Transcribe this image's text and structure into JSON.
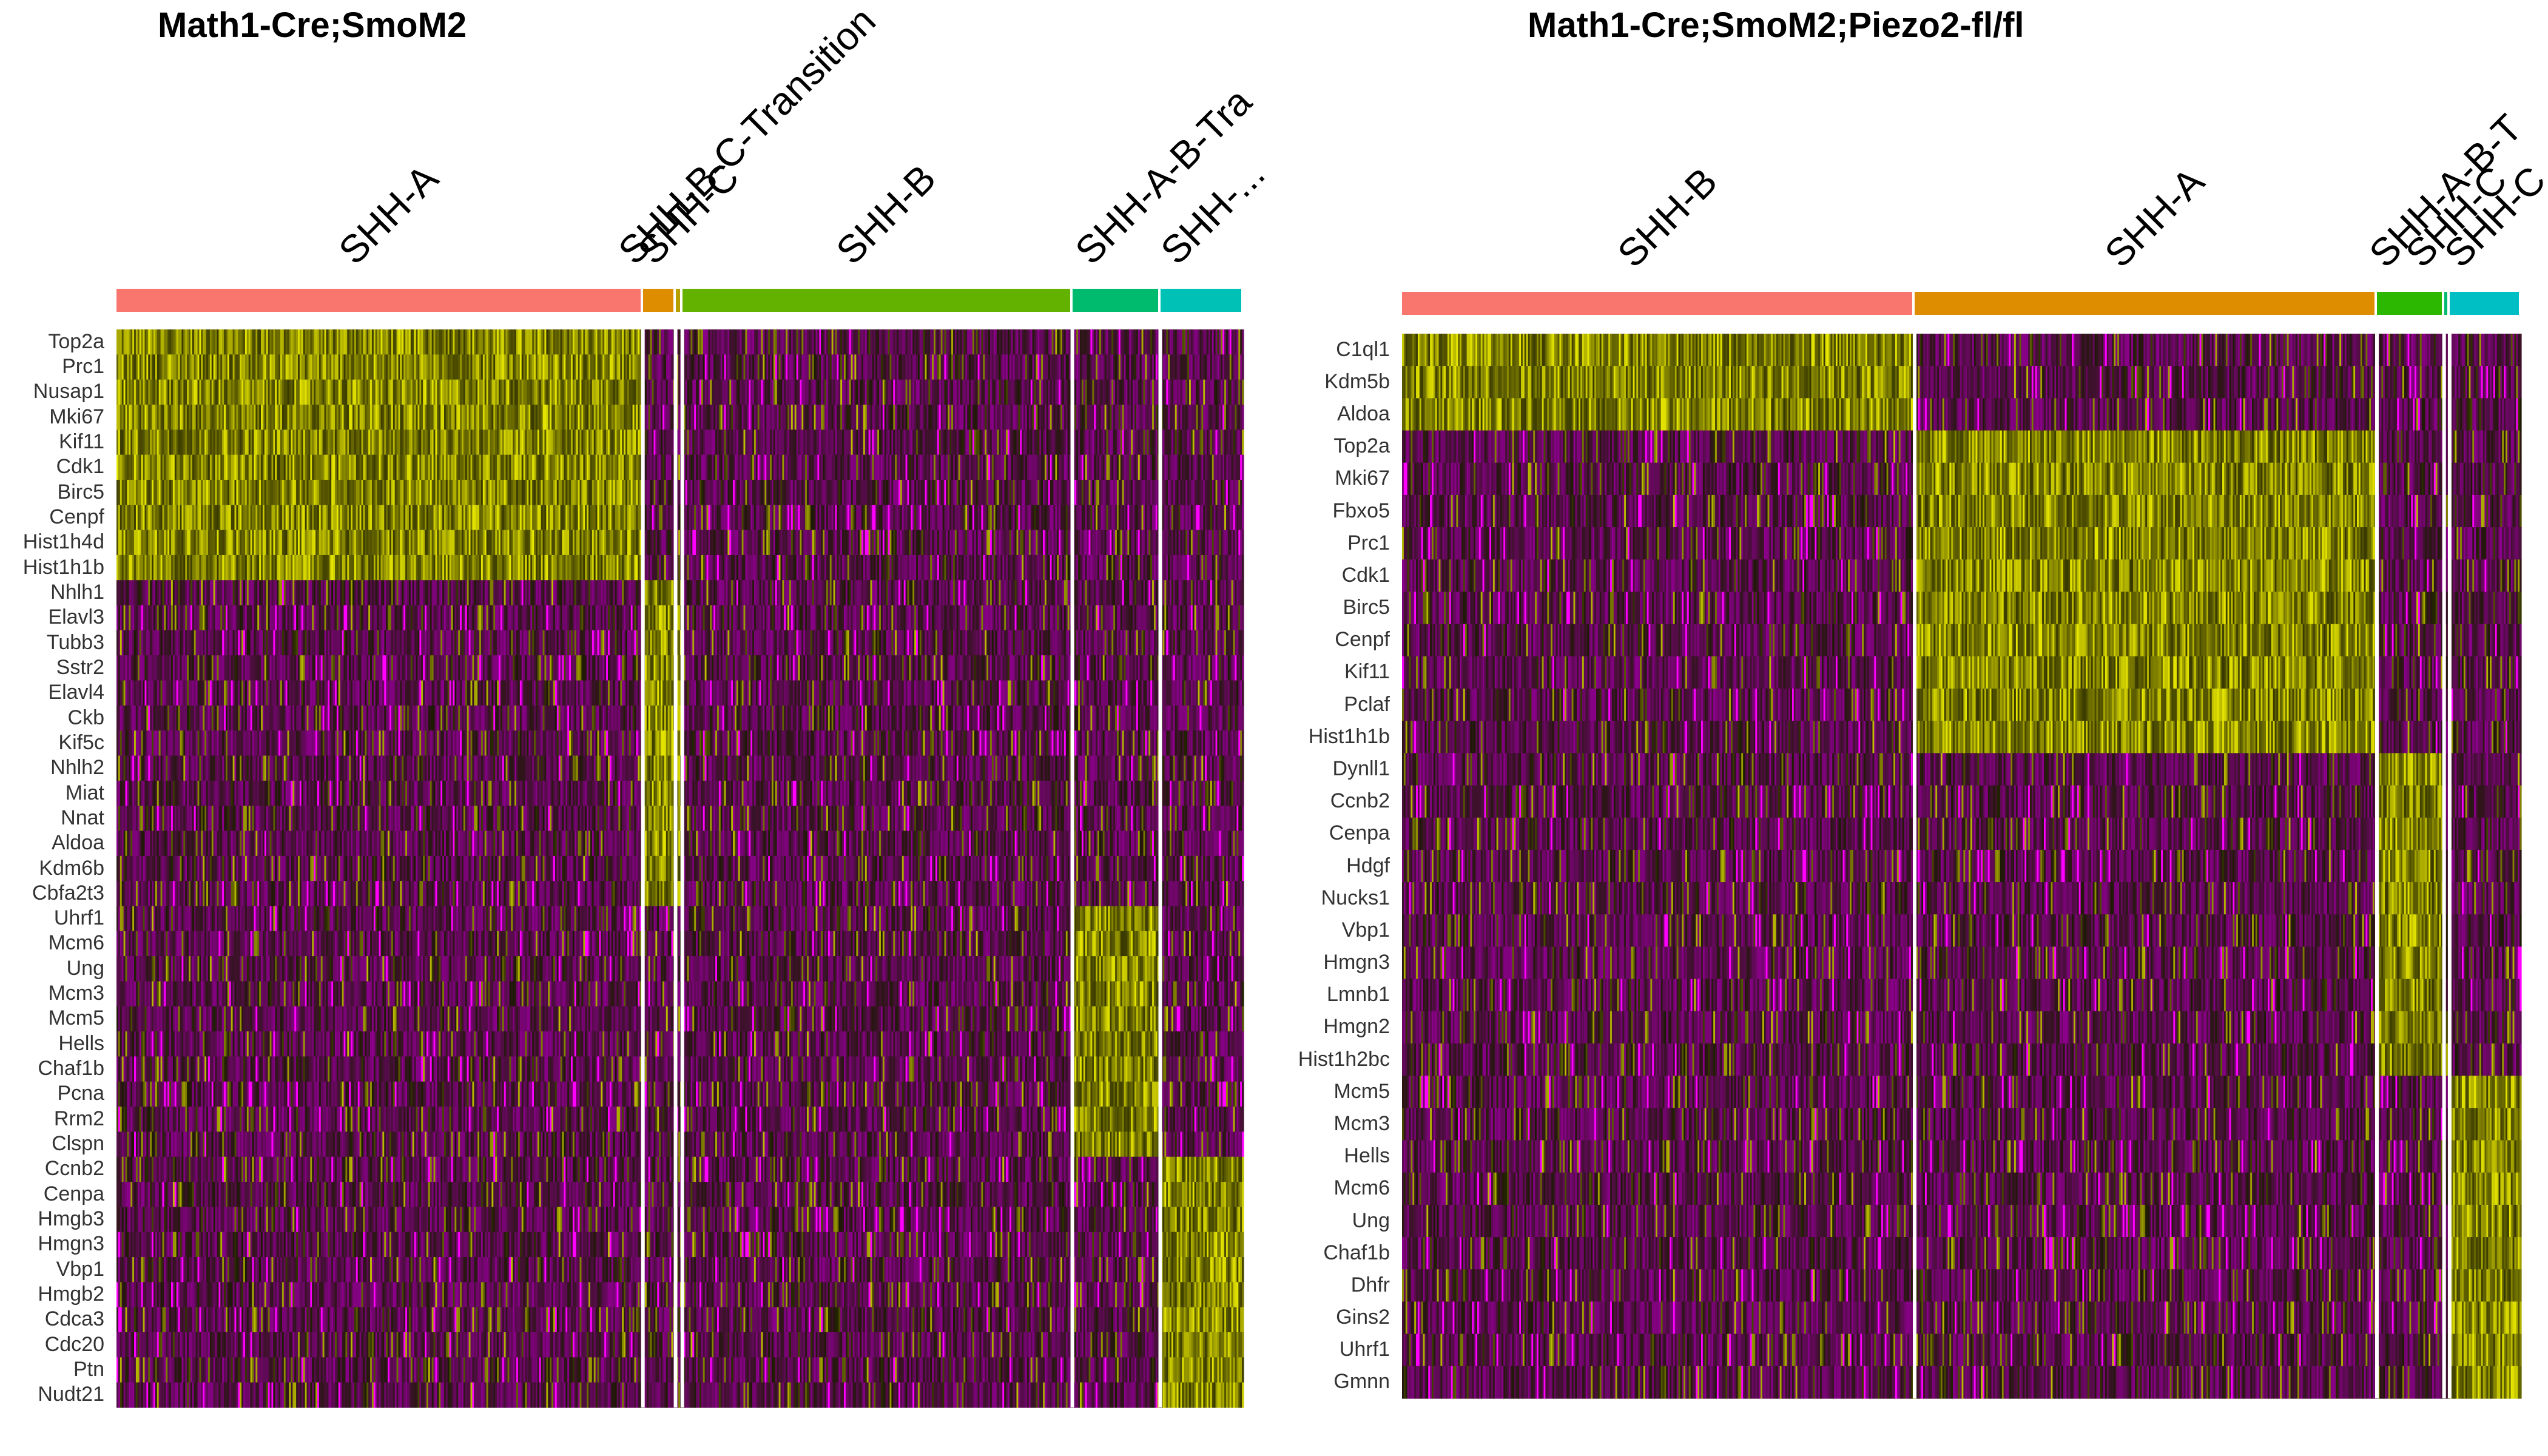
{
  "palette": {
    "low": "#8B008B",
    "mid": "#1a1a00",
    "high": "#E6E600",
    "outlier": "#FF00FF",
    "separator": "#FFFFFF"
  },
  "chart_data": [
    {
      "type": "heatmap",
      "title": "Math1-Cre;SmoM2",
      "clusters": [
        {
          "name": "SHH-A",
          "color": "#F8766D",
          "fraction": 0.467
        },
        {
          "name": "SHH-B-C-Transition",
          "color": "#DE8C00",
          "fraction": 0.029
        },
        {
          "name": "SHH-C",
          "color": "#B79F00",
          "fraction": 0.006
        },
        {
          "name": "SHH-B",
          "color": "#64B200",
          "fraction": 0.346
        },
        {
          "name": "SHH-A-B-Tra",
          "color": "#00BA6E",
          "fraction": 0.078
        },
        {
          "name": "SHH-...",
          "color": "#00C1B5",
          "fraction": 0.074
        }
      ],
      "genes": [
        {
          "name": "Top2a",
          "high": [
            0
          ]
        },
        {
          "name": "Prc1",
          "high": [
            0
          ]
        },
        {
          "name": "Nusap1",
          "high": [
            0
          ]
        },
        {
          "name": "Mki67",
          "high": [
            0
          ]
        },
        {
          "name": "Kif11",
          "high": [
            0
          ]
        },
        {
          "name": "Cdk1",
          "high": [
            0
          ]
        },
        {
          "name": "Birc5",
          "high": [
            0
          ]
        },
        {
          "name": "Cenpf",
          "high": [
            0
          ]
        },
        {
          "name": "Hist1h4d",
          "high": [
            0
          ]
        },
        {
          "name": "Hist1h1b",
          "high": [
            0
          ]
        },
        {
          "name": "Nhlh1",
          "high": [
            1,
            2
          ]
        },
        {
          "name": "Elavl3",
          "high": [
            1,
            2
          ]
        },
        {
          "name": "Tubb3",
          "high": [
            1,
            2
          ]
        },
        {
          "name": "Sstr2",
          "high": [
            1,
            2
          ]
        },
        {
          "name": "Elavl4",
          "high": [
            1,
            2
          ]
        },
        {
          "name": "Ckb",
          "high": [
            1,
            2
          ]
        },
        {
          "name": "Kif5c",
          "high": [
            1,
            2
          ]
        },
        {
          "name": "Nhlh2",
          "high": [
            1,
            2
          ]
        },
        {
          "name": "Miat",
          "high": [
            1,
            2
          ]
        },
        {
          "name": "Nnat",
          "high": [
            1,
            2
          ]
        },
        {
          "name": "Aldoa",
          "high": [
            1,
            2
          ]
        },
        {
          "name": "Kdm6b",
          "high": [
            1,
            2
          ]
        },
        {
          "name": "Cbfa2t3",
          "high": [
            1,
            2
          ]
        },
        {
          "name": "Uhrf1",
          "high": [
            4
          ]
        },
        {
          "name": "Mcm6",
          "high": [
            4
          ]
        },
        {
          "name": "Ung",
          "high": [
            4
          ]
        },
        {
          "name": "Mcm3",
          "high": [
            4
          ]
        },
        {
          "name": "Mcm5",
          "high": [
            4
          ]
        },
        {
          "name": "Hells",
          "high": [
            4
          ]
        },
        {
          "name": "Chaf1b",
          "high": [
            4
          ]
        },
        {
          "name": "Pcna",
          "high": [
            4
          ]
        },
        {
          "name": "Rrm2",
          "high": [
            4
          ]
        },
        {
          "name": "Clspn",
          "high": [
            4
          ]
        },
        {
          "name": "Ccnb2",
          "high": [
            5
          ]
        },
        {
          "name": "Cenpa",
          "high": [
            5
          ]
        },
        {
          "name": "Hmgb3",
          "high": [
            5
          ]
        },
        {
          "name": "Hmgn3",
          "high": [
            5
          ]
        },
        {
          "name": "Vbp1",
          "high": [
            5
          ]
        },
        {
          "name": "Hmgb2",
          "high": [
            5
          ]
        },
        {
          "name": "Cdca3",
          "high": [
            5
          ]
        },
        {
          "name": "Cdc20",
          "high": [
            5
          ]
        },
        {
          "name": "Ptn",
          "high": [
            5
          ]
        },
        {
          "name": "Nudt21",
          "high": [
            5
          ]
        }
      ]
    },
    {
      "type": "heatmap",
      "title": "Math1-Cre;SmoM2;Piezo2-fl/fl",
      "clusters": [
        {
          "name": "SHH-B",
          "color": "#F8766D",
          "fraction": 0.458
        },
        {
          "name": "SHH-A",
          "color": "#DE8C00",
          "fraction": 0.413
        },
        {
          "name": "SHH-A-B-T",
          "color": "#2CB800",
          "fraction": 0.06
        },
        {
          "name": "SHH-C",
          "color": "#00BA6E",
          "fraction": 0.005
        },
        {
          "name": "SHH-C",
          "color": "#00BFC4",
          "fraction": 0.064
        }
      ],
      "genes": [
        {
          "name": "C1ql1",
          "high": [
            0
          ]
        },
        {
          "name": "Kdm5b",
          "high": [
            0
          ]
        },
        {
          "name": "Aldoa",
          "high": [
            0
          ]
        },
        {
          "name": "Top2a",
          "high": [
            1
          ]
        },
        {
          "name": "Mki67",
          "high": [
            1
          ]
        },
        {
          "name": "Fbxo5",
          "high": [
            1
          ]
        },
        {
          "name": "Prc1",
          "high": [
            1
          ]
        },
        {
          "name": "Cdk1",
          "high": [
            1
          ]
        },
        {
          "name": "Birc5",
          "high": [
            1
          ]
        },
        {
          "name": "Cenpf",
          "high": [
            1
          ]
        },
        {
          "name": "Kif11",
          "high": [
            1
          ]
        },
        {
          "name": "Pclaf",
          "high": [
            1
          ]
        },
        {
          "name": "Hist1h1b",
          "high": [
            1
          ]
        },
        {
          "name": "Dynll1",
          "high": [
            2
          ]
        },
        {
          "name": "Ccnb2",
          "high": [
            2
          ]
        },
        {
          "name": "Cenpa",
          "high": [
            2
          ]
        },
        {
          "name": "Hdgf",
          "high": [
            2
          ]
        },
        {
          "name": "Nucks1",
          "high": [
            2
          ]
        },
        {
          "name": "Vbp1",
          "high": [
            2
          ]
        },
        {
          "name": "Hmgn3",
          "high": [
            2
          ]
        },
        {
          "name": "Lmnb1",
          "high": [
            2
          ]
        },
        {
          "name": "Hmgn2",
          "high": [
            2
          ]
        },
        {
          "name": "Hist1h2bc",
          "high": [
            2
          ]
        },
        {
          "name": "Mcm5",
          "high": [
            4
          ]
        },
        {
          "name": "Mcm3",
          "high": [
            4
          ]
        },
        {
          "name": "Hells",
          "high": [
            4
          ]
        },
        {
          "name": "Mcm6",
          "high": [
            4
          ]
        },
        {
          "name": "Ung",
          "high": [
            4
          ]
        },
        {
          "name": "Chaf1b",
          "high": [
            4
          ]
        },
        {
          "name": "Dhfr",
          "high": [
            4
          ]
        },
        {
          "name": "Gins2",
          "high": [
            4
          ]
        },
        {
          "name": "Uhrf1",
          "high": [
            4
          ]
        },
        {
          "name": "Gmnn",
          "high": [
            4
          ]
        }
      ]
    }
  ]
}
